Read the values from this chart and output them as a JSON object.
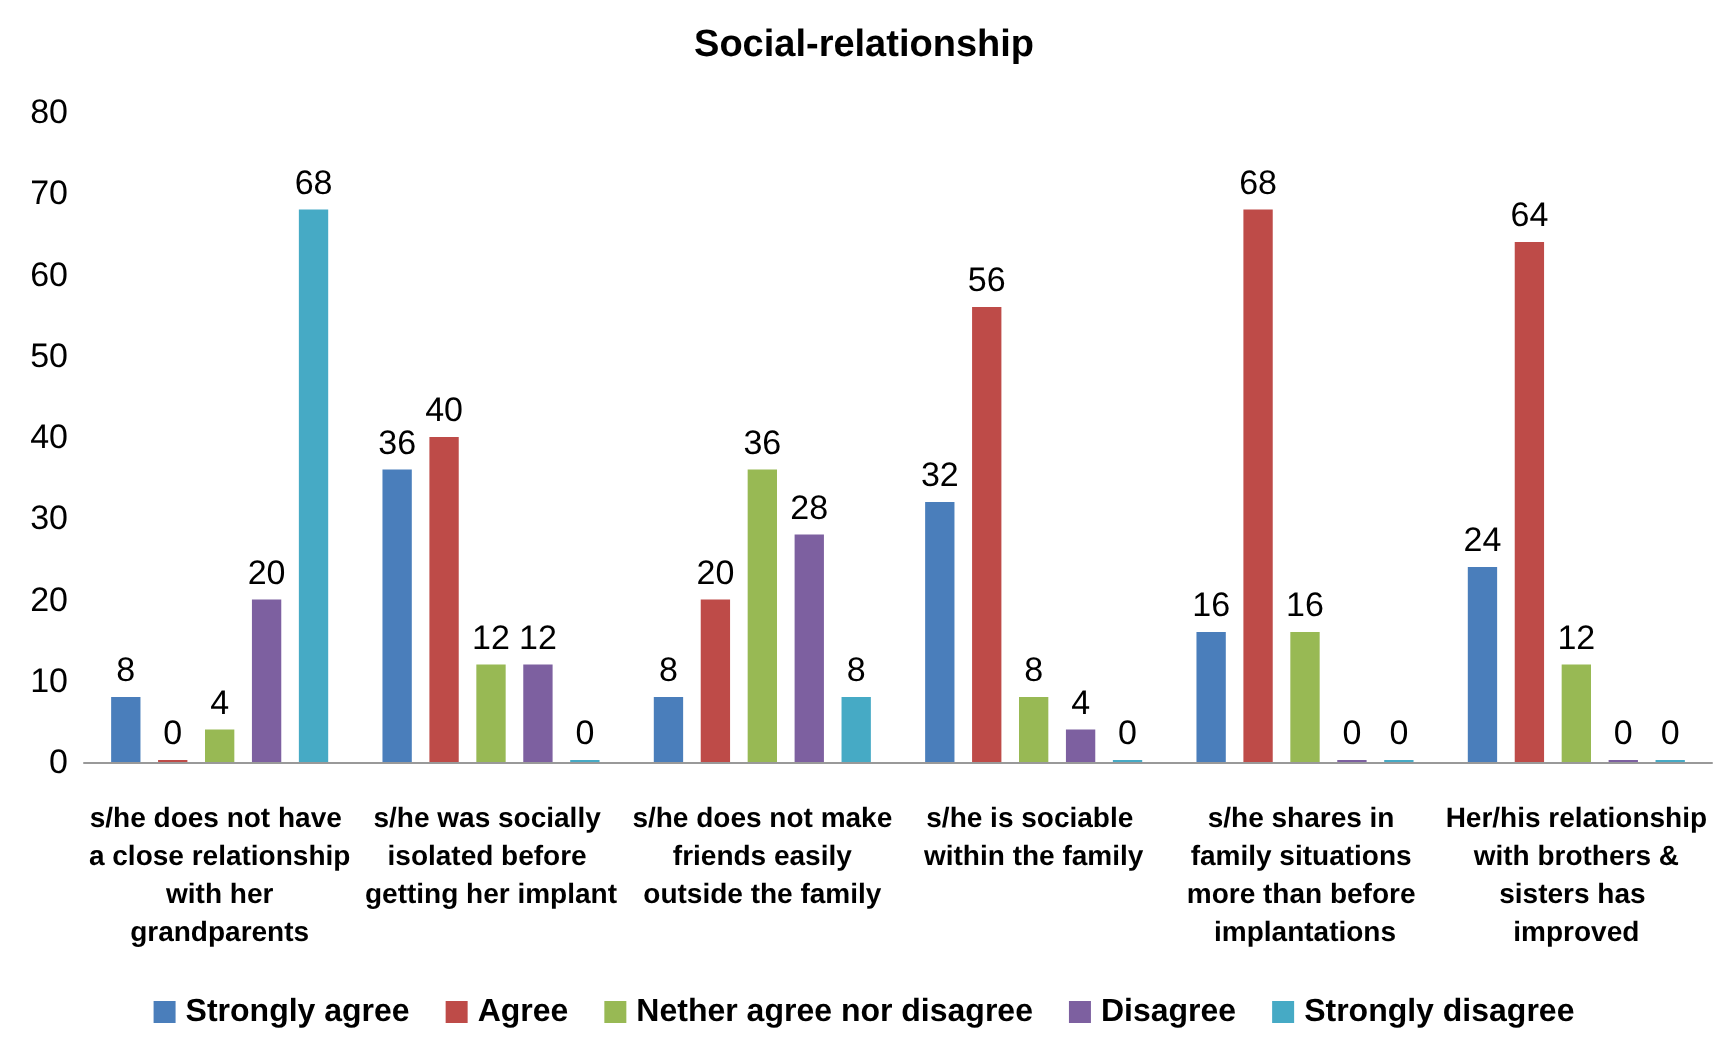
{
  "chart_data": {
    "type": "bar",
    "title": "Social-relationship",
    "categories": [
      "s/he does not have a close relationship with her grandparents",
      "s/he was socially isolated before getting her implant",
      "s/he does not make friends easily outside the family",
      "s/he is sociable within the family",
      "s/he shares in family situations more than before implantations",
      "Her/his relationship with brothers & sisters has improved"
    ],
    "series": [
      {
        "name": "Strongly agree",
        "color": "#4a7ebb",
        "values": [
          8,
          36,
          8,
          32,
          16,
          24
        ]
      },
      {
        "name": "Agree",
        "color": "#be4b48",
        "values": [
          0,
          40,
          20,
          56,
          68,
          64
        ]
      },
      {
        "name": "Nether agree nor disagree",
        "color": "#98b954",
        "values": [
          4,
          12,
          36,
          8,
          16,
          12
        ]
      },
      {
        "name": "Disagree",
        "color": "#7d60a0",
        "values": [
          20,
          12,
          28,
          4,
          0,
          0
        ]
      },
      {
        "name": "Strongly disagree",
        "color": "#46aac5",
        "values": [
          68,
          0,
          8,
          0,
          0,
          0
        ]
      }
    ],
    "ylim": [
      0,
      80
    ],
    "yticks": [
      0,
      10,
      20,
      30,
      40,
      50,
      60,
      70,
      80
    ],
    "grid": false,
    "legend": "bottom",
    "data_labels": true
  }
}
